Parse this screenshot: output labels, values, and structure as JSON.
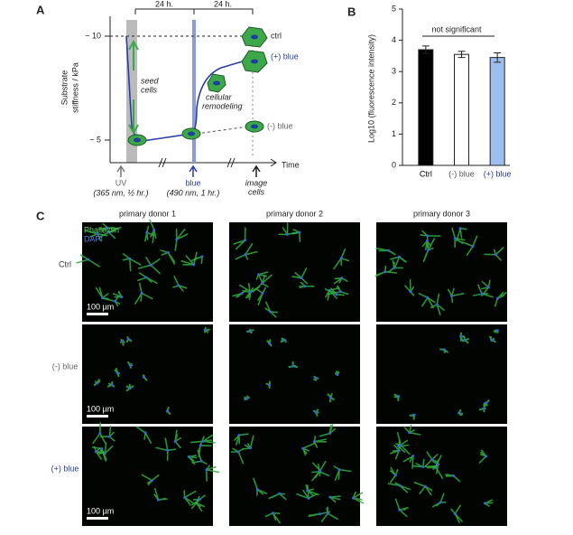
{
  "panel_a": {
    "label": "A",
    "y_label": [
      "Substrate",
      "stiffness / kPa"
    ],
    "y_ticks": [
      "~ 10",
      "~ 5"
    ],
    "intervals": [
      "24 h.",
      "24 h."
    ],
    "annotations": [
      [
        "seed",
        "cells"
      ],
      [
        "cellular",
        "remodeling"
      ]
    ],
    "states": [
      "ctrl",
      "(+) blue",
      "(-) blue"
    ],
    "x_label": "Time",
    "events": [
      {
        "label": [
          "UV"
        ],
        "detail": "(365 nm, ½ hr.)"
      },
      {
        "label": [
          "blue"
        ],
        "detail": "(490 nm, 1 hr.)"
      },
      {
        "label": [
          "image",
          "cells"
        ]
      }
    ]
  },
  "panel_b_label": "B",
  "chart_data": {
    "type": "bar",
    "y_label": "Log10 (fluorescence intensity)",
    "annotation": "not significant",
    "categories": [
      "Ctrl",
      "(-) blue",
      "(+) blue"
    ],
    "values": [
      3.7,
      3.55,
      3.45
    ],
    "errors": [
      0.12,
      0.1,
      0.15
    ],
    "colors": [
      "#000000",
      "#ffffff",
      "#9dbff0"
    ],
    "label_colors": [
      "#000000",
      "#555555",
      "#2a3ca8"
    ],
    "ylim": [
      0,
      5
    ],
    "yticks": [
      0,
      1,
      2,
      3,
      4,
      5
    ]
  },
  "panel_c": {
    "label": "C",
    "columns": [
      "primary donor 1",
      "primary donor 2",
      "primary donor 3"
    ],
    "rows": [
      "Ctrl",
      "(-) blue",
      "(+) blue"
    ],
    "row_colors": [
      "#333333",
      "#666666",
      "#2a3ca8"
    ],
    "stain_labels": [
      "Phalloidin",
      "DAPI"
    ],
    "scale_bar": "100 µm"
  }
}
